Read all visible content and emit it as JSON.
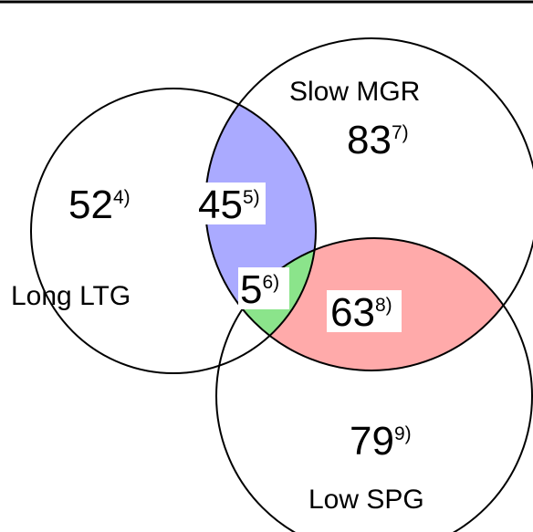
{
  "colors": {
    "background": "#ffffff",
    "outline": "#000000",
    "long_slow_only": "#aaaaff",
    "long_slow_low": "#8be48b",
    "slow_low_only": "#ffaaaa"
  },
  "sets": {
    "long_ltg": {
      "name": "Long LTG"
    },
    "slow_mgr": {
      "name": "Slow MGR"
    },
    "low_spg": {
      "name": "Low SPG"
    }
  },
  "regions": {
    "long_only": {
      "count": "52",
      "note": "4)"
    },
    "slow_only": {
      "count": "83",
      "note": "7)"
    },
    "low_only": {
      "count": "79",
      "note": "9)"
    },
    "long_slow": {
      "count": "45",
      "note": "5)"
    },
    "long_slow_low": {
      "count": "5",
      "note": "6)"
    },
    "slow_low": {
      "count": "63",
      "note": "8)"
    }
  }
}
